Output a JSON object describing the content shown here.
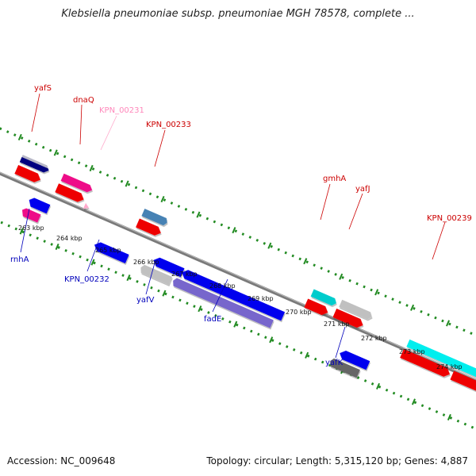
{
  "title": "Klebsiella pneumoniae subsp. pneumoniae MGH 78578, complete ...",
  "footer": {
    "accession": "Accession: NC_009648",
    "topology": "Topology: circular; Length: 5,315,120 bp; Genes: 4,887"
  },
  "colors": {
    "backbone": "#808080",
    "ruler_ticks": "#228b22",
    "forward_label": "#cc0000",
    "reverse_label": "#0000bb",
    "faded_label": "#ff88bb"
  },
  "scale_labels": [
    "263 kbp",
    "264 kbp",
    "265 kbp",
    "266 kbp",
    "267 kbp",
    "268 kbp",
    "269 kbp",
    "270 kbp",
    "271 kbp",
    "272 kbp",
    "273 kbp",
    "274 kbp"
  ],
  "gene_labels": {
    "yafS": "yafS",
    "dnaQ": "dnaQ",
    "KPN_00231": "KPN_00231",
    "KPN_00233": "KPN_00233",
    "gmhA": "gmhA",
    "yafJ": "yafJ",
    "KPN_00239": "KPN_00239",
    "rnhA": "rnhA",
    "KPN_00232": "KPN_00232",
    "yafV": "yafV",
    "fadE": "fadE",
    "yafK": "yafK"
  }
}
